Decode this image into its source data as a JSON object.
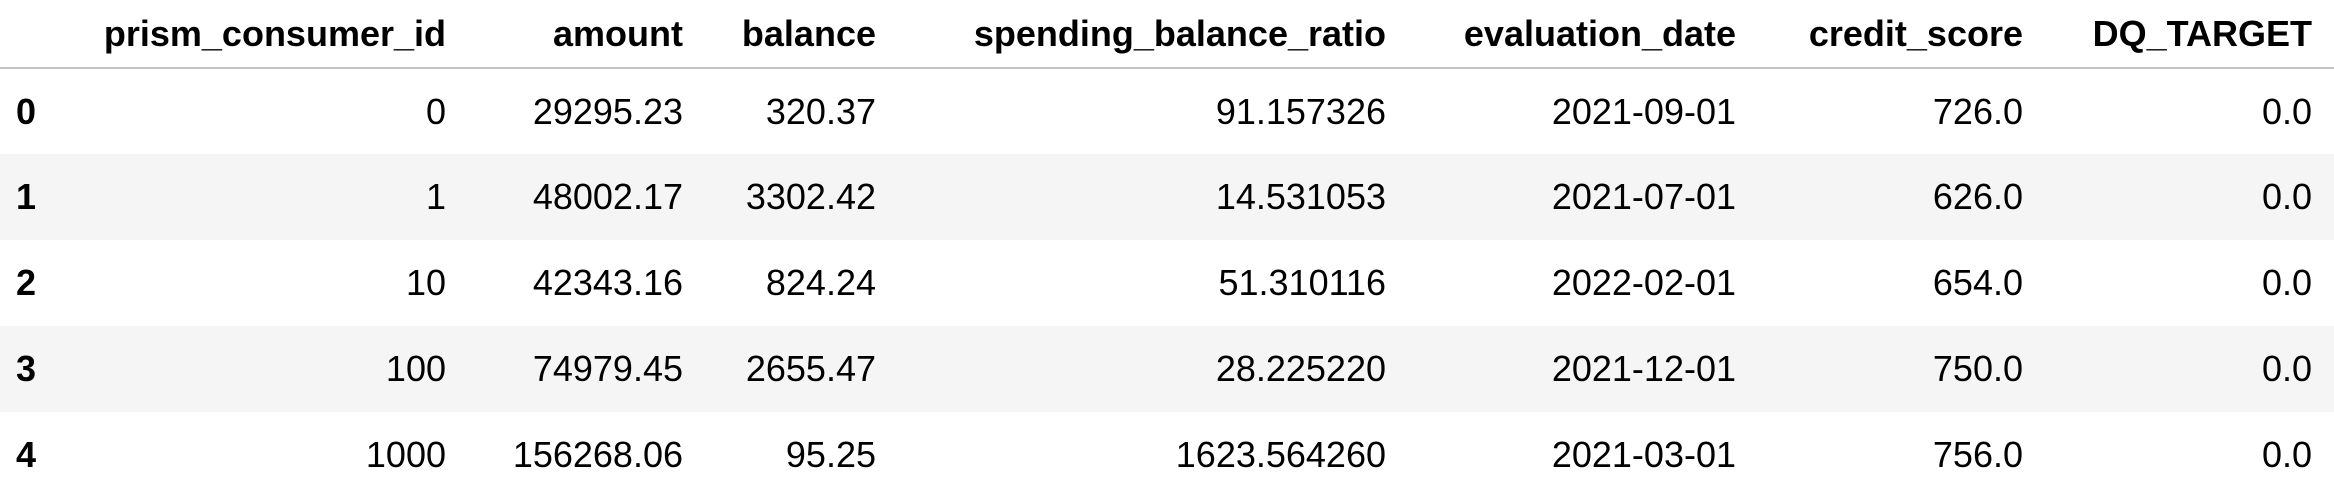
{
  "table": {
    "index_header": "",
    "columns": [
      "prism_consumer_id",
      "amount",
      "balance",
      "spending_balance_ratio",
      "evaluation_date",
      "credit_score",
      "DQ_TARGET"
    ],
    "rows": [
      {
        "index": "0",
        "cells": [
          "0",
          "29295.23",
          "320.37",
          "91.157326",
          "2021-09-01",
          "726.0",
          "0.0"
        ]
      },
      {
        "index": "1",
        "cells": [
          "1",
          "48002.17",
          "3302.42",
          "14.531053",
          "2021-07-01",
          "626.0",
          "0.0"
        ]
      },
      {
        "index": "2",
        "cells": [
          "10",
          "42343.16",
          "824.24",
          "51.310116",
          "2022-02-01",
          "654.0",
          "0.0"
        ]
      },
      {
        "index": "3",
        "cells": [
          "100",
          "74979.45",
          "2655.47",
          "28.225220",
          "2021-12-01",
          "750.0",
          "0.0"
        ]
      },
      {
        "index": "4",
        "cells": [
          "1000",
          "156268.06",
          "95.25",
          "1623.564260",
          "2021-03-01",
          "756.0",
          "0.0"
        ]
      }
    ]
  }
}
